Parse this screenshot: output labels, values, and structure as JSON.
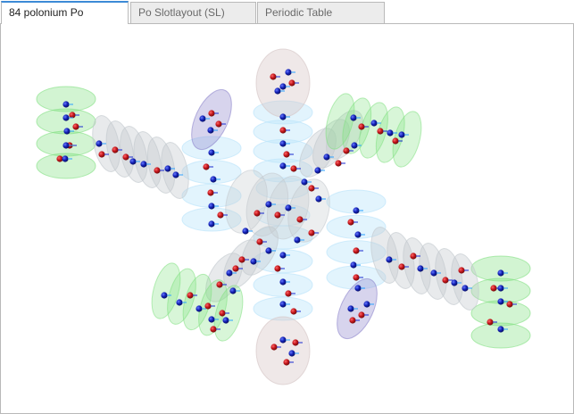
{
  "tabs": [
    {
      "label": "84 polonium Po",
      "active": true
    },
    {
      "label": "Po Slotlayout (SL)",
      "active": false
    },
    {
      "label": "Periodic Table",
      "active": false
    }
  ],
  "colors": {
    "tab_accent": "#3c8ad6",
    "sphere_red": "#c4161c",
    "sphere_blue": "#1422b8",
    "orbital_green": "#7fe07f",
    "orbital_blue": "#bfe6fb",
    "orbital_gray": "#c3c9ce",
    "orbital_purple": "#8c84cc",
    "orbital_rose": "#d6c6c6"
  },
  "visualization": {
    "element": "polonium",
    "symbol": "Po",
    "atomic_number": 84
  }
}
